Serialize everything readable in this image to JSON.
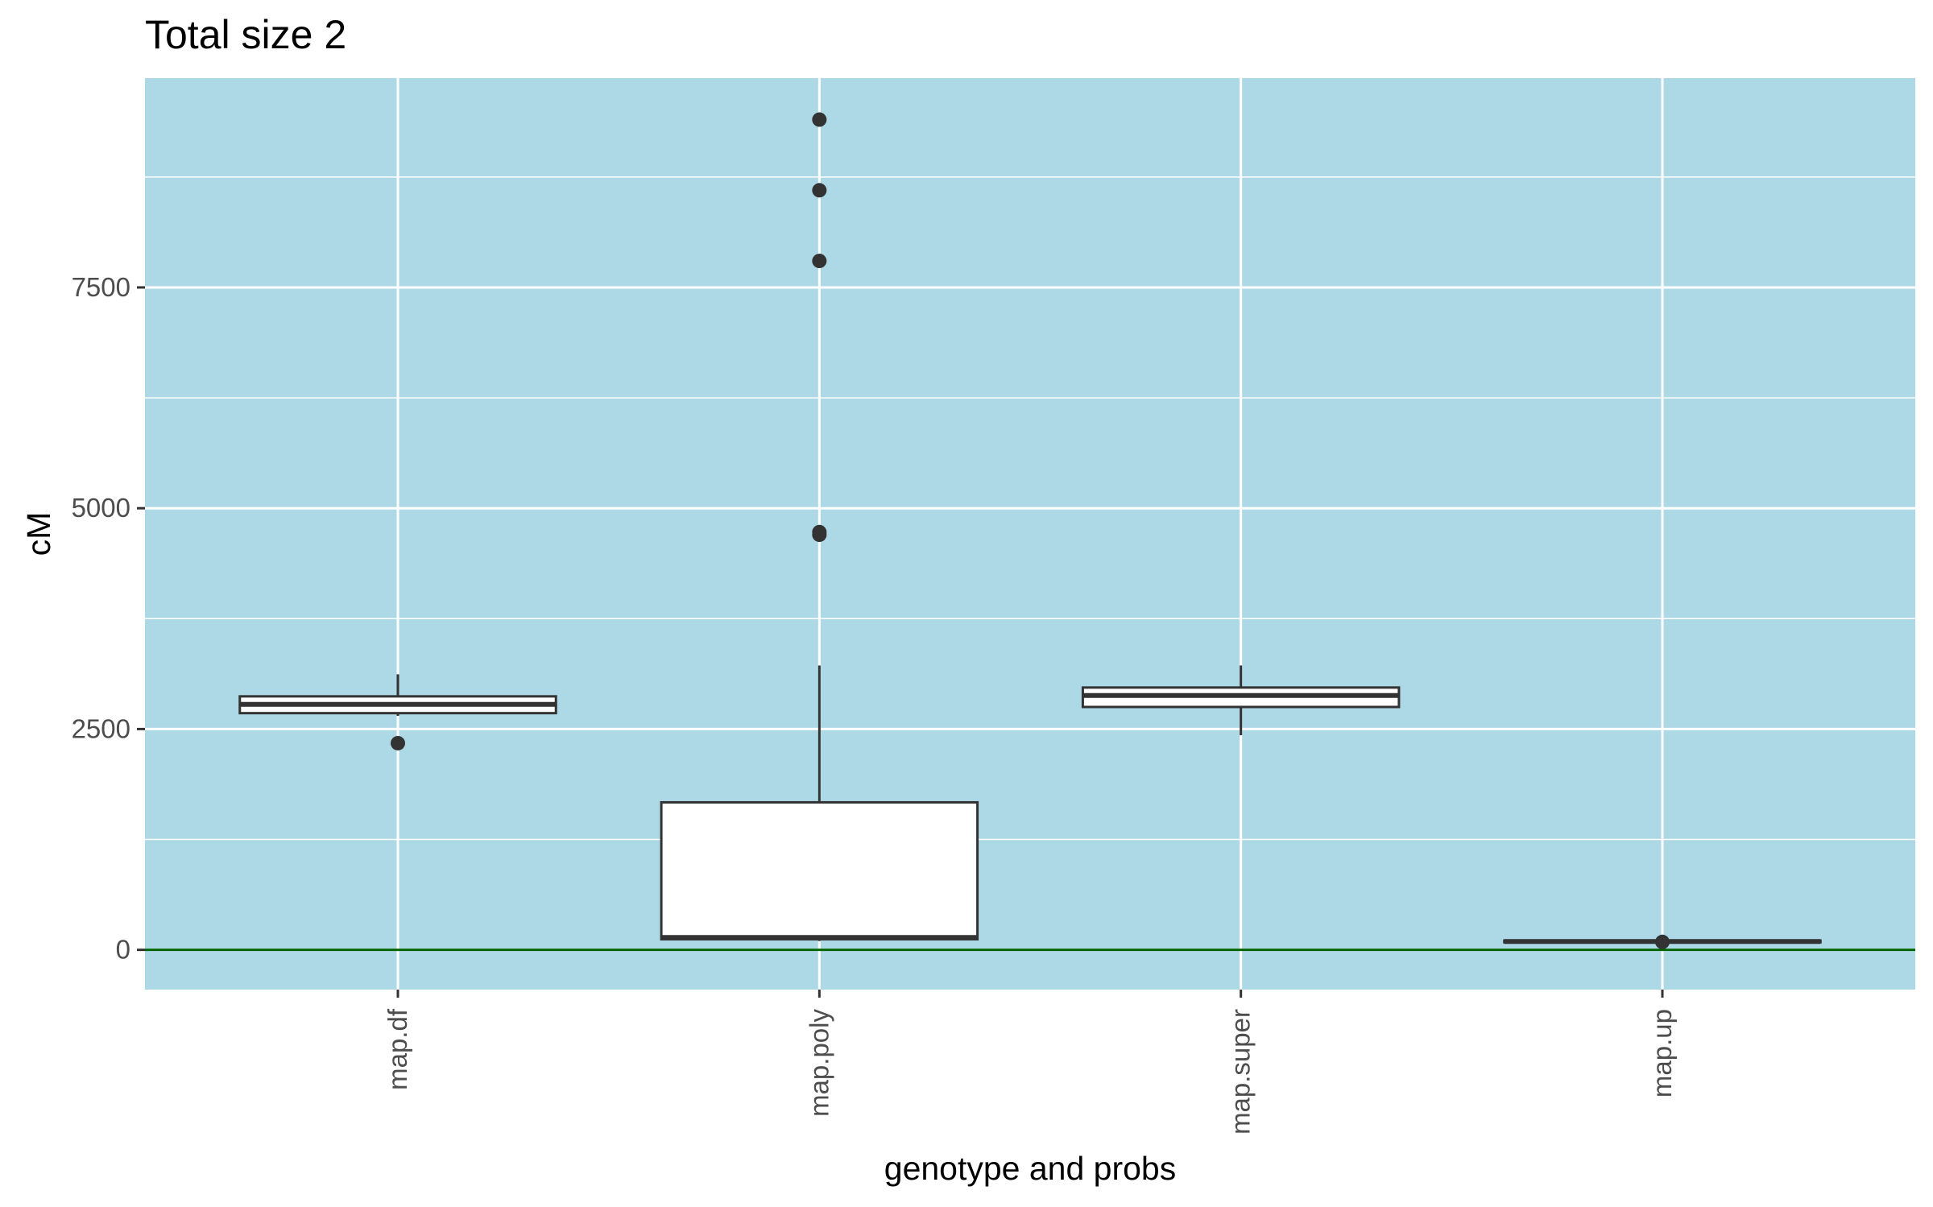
{
  "chart_data": {
    "type": "box",
    "title": "Total size 2",
    "xlabel": "genotype and probs",
    "ylabel": "cM",
    "ylim": [
      -450,
      9870
    ],
    "y_ticks": [
      0,
      2500,
      5000,
      7500
    ],
    "y_tick_labels": [
      "0",
      "2500",
      "5000",
      "7500"
    ],
    "y_minor_ticks": [
      1250,
      3750,
      6250,
      8750
    ],
    "categories": [
      "map.df",
      "map.poly",
      "map.super",
      "map.up"
    ],
    "boxes": [
      {
        "category": "map.df",
        "min": 2650,
        "q1": 2680,
        "median": 2780,
        "q3": 2870,
        "max": 3120,
        "outliers": [
          2340
        ]
      },
      {
        "category": "map.poly",
        "min": 100,
        "q1": 120,
        "median": 140,
        "q3": 1670,
        "max": 3220,
        "outliers": [
          4700,
          4730,
          7800,
          8600,
          9400
        ]
      },
      {
        "category": "map.super",
        "min": 2430,
        "q1": 2750,
        "median": 2880,
        "q3": 2970,
        "max": 3220,
        "outliers": []
      },
      {
        "category": "map.up",
        "min": 80,
        "q1": 85,
        "median": 95,
        "q3": 105,
        "max": 110,
        "outliers": [
          90
        ]
      }
    ],
    "reference_line": {
      "y": 0,
      "color": "#006400"
    },
    "grid": true,
    "legend": "none",
    "colors": {
      "panel_background": "#add8e6",
      "grid": "#ffffff",
      "box_fill": "#ffffff",
      "box_stroke": "#333333",
      "outlier": "#333333"
    }
  }
}
